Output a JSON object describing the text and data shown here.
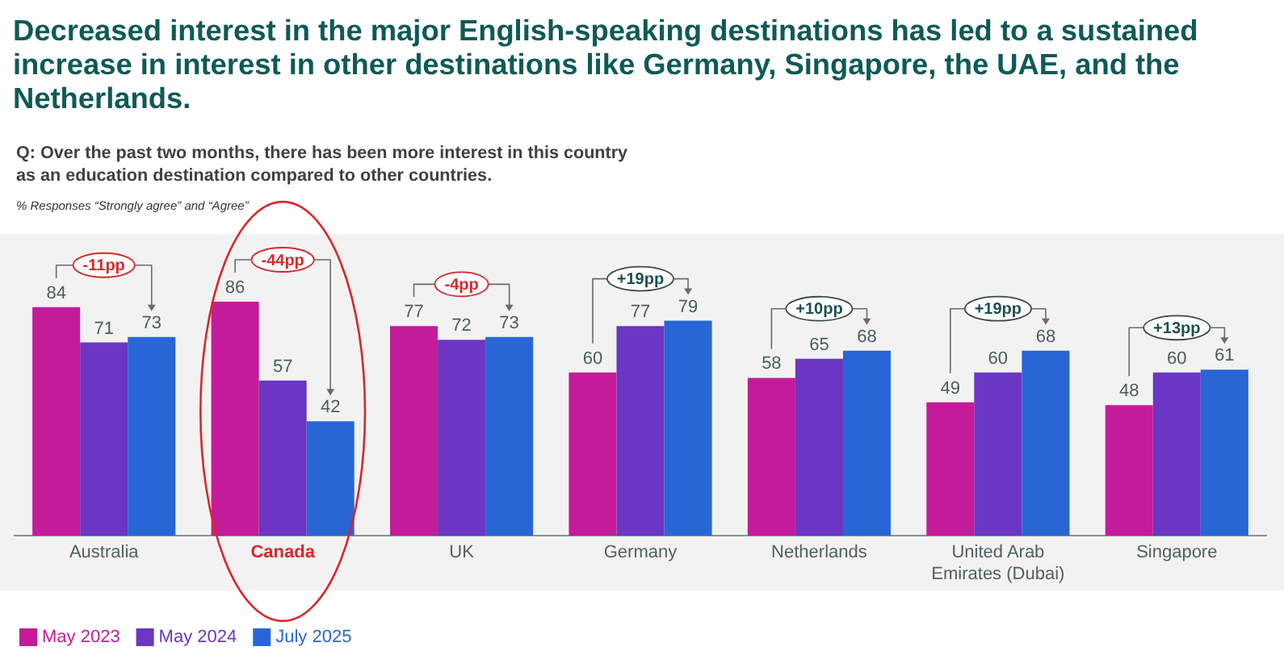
{
  "chart_data": {
    "type": "bar",
    "title": "Decreased interest in the major English-speaking destinations has led to a sustained increase in interest in other destinations like Germany, Singapore, the UAE, and the Netherlands.",
    "subtitle": "Q: Over the past two months, there has been more interest in this country as an education destination compared to other countries.",
    "annotations": [
      "% Responses “Strongly agree” and “Agree”",
      "-11pp",
      "-44pp",
      "-4pp",
      "+19pp",
      "+10pp",
      "+19pp",
      "+13pp"
    ],
    "categories": [
      "Australia",
      "Canada",
      "UK",
      "Germany",
      "Netherlands",
      "United Arab Emirates (Dubai)",
      "Singapore"
    ],
    "series": [
      {
        "name": "May 2023",
        "color": "#c41b9b",
        "values": [
          84,
          86,
          77,
          60,
          58,
          49,
          48
        ]
      },
      {
        "name": "May 2024",
        "color": "#6a36c3",
        "values": [
          71,
          57,
          72,
          77,
          65,
          60,
          60
        ]
      },
      {
        "name": "July 2025",
        "color": "#2866d6",
        "values": [
          73,
          42,
          73,
          79,
          68,
          68,
          61
        ]
      }
    ],
    "data_labels": true,
    "legend": "bottom left"
  }
}
